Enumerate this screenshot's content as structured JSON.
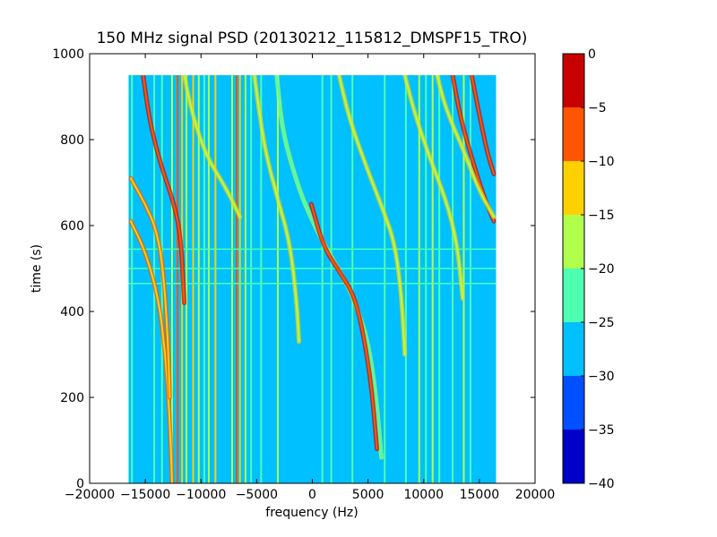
{
  "chart_data": {
    "type": "heatmap",
    "title": "150 MHz signal PSD (20130212_115812_DMSPF15_TRO)",
    "xlabel": "frequency (Hz)",
    "ylabel": "time (s)",
    "xlim": [
      -20000,
      20000
    ],
    "ylim": [
      0,
      1000
    ],
    "x_ticks": [
      -20000,
      -15000,
      -10000,
      -5000,
      0,
      5000,
      10000,
      15000,
      20000
    ],
    "x_tick_labels": [
      "−20000",
      "−15000",
      "−10000",
      "−5000",
      "0",
      "5000",
      "10000",
      "15000",
      "20000"
    ],
    "y_ticks": [
      0,
      200,
      400,
      600,
      800,
      1000
    ],
    "y_tick_labels": [
      "0",
      "200",
      "400",
      "600",
      "800",
      "1000"
    ],
    "data_extent": {
      "x": [
        -16500,
        16500
      ],
      "y": [
        0,
        950
      ]
    },
    "colorbar": {
      "range": [
        -40,
        0
      ],
      "ticks": [
        0,
        -5,
        -10,
        -15,
        -20,
        -25,
        -30,
        -35,
        -40
      ],
      "tick_labels": [
        "0",
        "−5",
        "−10",
        "−15",
        "−20",
        "−25",
        "−30",
        "−35",
        "−40"
      ],
      "levels": [
        {
          "from": -40,
          "to": -35,
          "color": "#0000c8"
        },
        {
          "from": -35,
          "to": -30,
          "color": "#0050ff"
        },
        {
          "from": -30,
          "to": -25,
          "color": "#00c0ff"
        },
        {
          "from": -25,
          "to": -20,
          "color": "#4dffb0"
        },
        {
          "from": -20,
          "to": -15,
          "color": "#b0ff4d"
        },
        {
          "from": -15,
          "to": -10,
          "color": "#ffd000"
        },
        {
          "from": -10,
          "to": -5,
          "color": "#ff5500"
        },
        {
          "from": -5,
          "to": 0,
          "color": "#c80000"
        }
      ]
    },
    "background_level": -27,
    "vertical_lines": [
      {
        "x": -16200,
        "level": -22
      },
      {
        "x": -14200,
        "level": -22
      },
      {
        "x": -13500,
        "level": -22
      },
      {
        "x": -12600,
        "level": -17
      },
      {
        "x": -12100,
        "level": -8
      },
      {
        "x": -11700,
        "level": -12
      },
      {
        "x": -11300,
        "level": -17
      },
      {
        "x": -10700,
        "level": -12
      },
      {
        "x": -10200,
        "level": -17
      },
      {
        "x": -9700,
        "level": -22
      },
      {
        "x": -9300,
        "level": -17
      },
      {
        "x": -8700,
        "level": -12
      },
      {
        "x": -7200,
        "level": -17
      },
      {
        "x": -6800,
        "level": -8
      },
      {
        "x": -6500,
        "level": -12
      },
      {
        "x": -6000,
        "level": -17
      },
      {
        "x": -5500,
        "level": -22
      },
      {
        "x": -4600,
        "level": -22
      },
      {
        "x": -3100,
        "level": -17
      },
      {
        "x": 900,
        "level": -22
      },
      {
        "x": 1700,
        "level": -22
      },
      {
        "x": 3600,
        "level": -22
      },
      {
        "x": 6500,
        "level": -22
      },
      {
        "x": 8400,
        "level": -22
      },
      {
        "x": 9600,
        "level": -17
      },
      {
        "x": 10200,
        "level": -22
      },
      {
        "x": 10800,
        "level": -17
      },
      {
        "x": 11400,
        "level": -22
      },
      {
        "x": 12600,
        "level": -22
      },
      {
        "x": 13600,
        "level": -17
      },
      {
        "x": 14200,
        "level": -22
      }
    ],
    "horizontal_lines": [
      {
        "y": 545,
        "level": -22
      },
      {
        "y": 500,
        "level": -22
      },
      {
        "y": 465,
        "level": -22
      }
    ],
    "curves": [
      {
        "level": -12,
        "points": [
          [
            -16300,
            610
          ],
          [
            -15000,
            540
          ],
          [
            -13800,
            430
          ],
          [
            -13200,
            300
          ],
          [
            -12800,
            150
          ],
          [
            -12600,
            0
          ]
        ]
      },
      {
        "level": -12,
        "points": [
          [
            -16300,
            710
          ],
          [
            -15000,
            650
          ],
          [
            -14000,
            590
          ],
          [
            -13400,
            500
          ],
          [
            -13000,
            350
          ],
          [
            -12800,
            200
          ]
        ]
      },
      {
        "level": -8,
        "points": [
          [
            -15200,
            950
          ],
          [
            -14600,
            840
          ],
          [
            -13600,
            740
          ],
          [
            -12400,
            650
          ],
          [
            -11800,
            570
          ],
          [
            -11500,
            420
          ]
        ]
      },
      {
        "level": -17,
        "points": [
          [
            -11500,
            950
          ],
          [
            -10800,
            860
          ],
          [
            -9500,
            760
          ],
          [
            -7800,
            690
          ],
          [
            -6500,
            620
          ]
        ]
      },
      {
        "level": -17,
        "points": [
          [
            -5200,
            950
          ],
          [
            -4800,
            870
          ],
          [
            -4200,
            770
          ],
          [
            -3200,
            670
          ],
          [
            -2000,
            560
          ],
          [
            -1400,
            420
          ],
          [
            -1200,
            330
          ]
        ]
      },
      {
        "level": -22,
        "points": [
          [
            -3200,
            950
          ],
          [
            -2700,
            820
          ],
          [
            -1400,
            700
          ],
          [
            -200,
            620
          ],
          [
            1400,
            540
          ],
          [
            3000,
            470
          ],
          [
            4000,
            410
          ],
          [
            5000,
            330
          ],
          [
            5700,
            210
          ],
          [
            6200,
            60
          ]
        ]
      },
      {
        "level": -8,
        "points": [
          [
            -100,
            650
          ],
          [
            1000,
            550
          ],
          [
            2500,
            490
          ],
          [
            3700,
            440
          ],
          [
            4500,
            360
          ],
          [
            5300,
            230
          ],
          [
            5800,
            80
          ]
        ]
      },
      {
        "level": -17,
        "points": [
          [
            2400,
            950
          ],
          [
            3300,
            850
          ],
          [
            4800,
            740
          ],
          [
            6300,
            640
          ],
          [
            7400,
            560
          ],
          [
            8000,
            440
          ],
          [
            8300,
            300
          ]
        ]
      },
      {
        "level": -17,
        "points": [
          [
            8300,
            950
          ],
          [
            9200,
            860
          ],
          [
            10500,
            760
          ],
          [
            12000,
            660
          ],
          [
            13000,
            560
          ],
          [
            13500,
            430
          ]
        ]
      },
      {
        "level": -8,
        "points": [
          [
            12600,
            950
          ],
          [
            13300,
            850
          ],
          [
            14400,
            750
          ],
          [
            15500,
            660
          ],
          [
            16300,
            610
          ]
        ]
      },
      {
        "level": -8,
        "points": [
          [
            14300,
            950
          ],
          [
            14900,
            870
          ],
          [
            15700,
            770
          ],
          [
            16300,
            720
          ]
        ]
      },
      {
        "level": -17,
        "points": [
          [
            11200,
            950
          ],
          [
            12000,
            870
          ],
          [
            13500,
            780
          ],
          [
            15000,
            680
          ],
          [
            16300,
            620
          ]
        ]
      }
    ]
  }
}
